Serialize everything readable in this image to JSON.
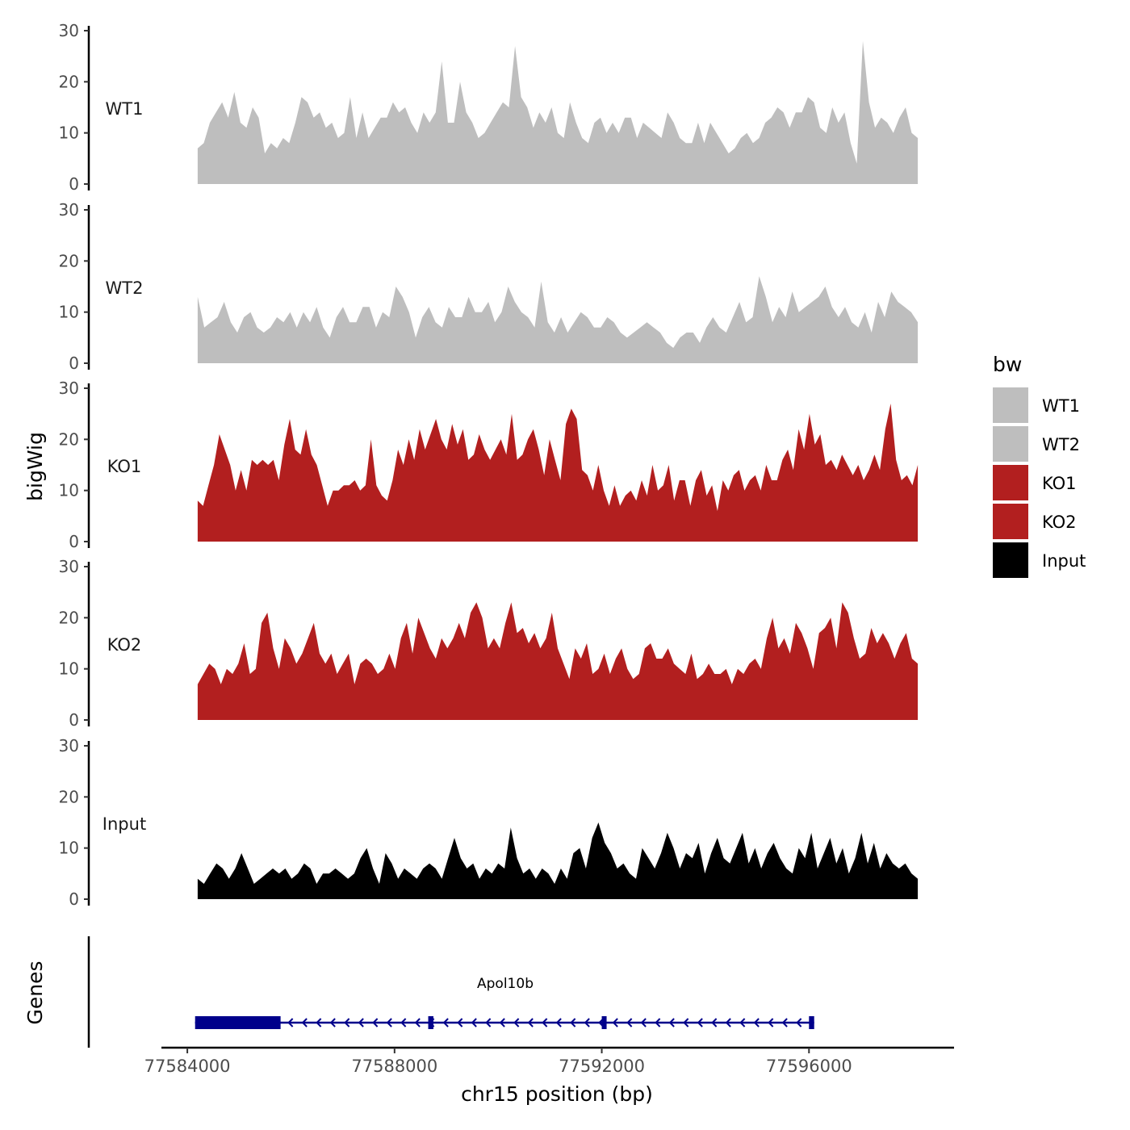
{
  "chart_data": {
    "type": "area",
    "title": "",
    "ylabel": "bigWig",
    "xlabel": "chr15 position (bp)",
    "genes_label": "Genes",
    "ylim": [
      0,
      30
    ],
    "yticks": [
      0,
      10,
      20,
      30
    ],
    "xlim": [
      77583500,
      77598800
    ],
    "xticks": [
      77584000,
      77588000,
      77592000,
      77596000
    ],
    "legend": {
      "title": "bw",
      "position": "right",
      "entries": [
        {
          "label": "WT1",
          "color": "#bebebe"
        },
        {
          "label": "WT2",
          "color": "#bebebe"
        },
        {
          "label": "KO1",
          "color": "#b21f1f"
        },
        {
          "label": "KO2",
          "color": "#b21f1f"
        },
        {
          "label": "Input",
          "color": "#000000"
        }
      ]
    },
    "x_start": 77584200,
    "x_end": 77598100,
    "series": [
      {
        "name": "WT1",
        "color": "#bebebe",
        "values": [
          7,
          8,
          12,
          14,
          16,
          13,
          18,
          12,
          11,
          15,
          13,
          6,
          8,
          7,
          9,
          8,
          12,
          17,
          16,
          13,
          14,
          11,
          12,
          9,
          10,
          17,
          9,
          14,
          9,
          11,
          13,
          13,
          16,
          14,
          15,
          12,
          10,
          14,
          12,
          14,
          24,
          12,
          12,
          20,
          14,
          12,
          9,
          10,
          12,
          14,
          16,
          15,
          27,
          17,
          15,
          11,
          14,
          12,
          15,
          10,
          9,
          16,
          12,
          9,
          8,
          12,
          13,
          10,
          12,
          10,
          13,
          13,
          9,
          12,
          11,
          10,
          9,
          14,
          12,
          9,
          8,
          8,
          12,
          8,
          12,
          10,
          8,
          6,
          7,
          9,
          10,
          8,
          9,
          12,
          13,
          15,
          14,
          11,
          14,
          14,
          17,
          16,
          11,
          10,
          15,
          12,
          14,
          8,
          4,
          28,
          16,
          11,
          13,
          12,
          10,
          13,
          15,
          10,
          9
        ]
      },
      {
        "name": "WT2",
        "color": "#bebebe",
        "values": [
          13,
          7,
          8,
          9,
          12,
          8,
          6,
          9,
          10,
          7,
          6,
          7,
          9,
          8,
          10,
          7,
          10,
          8,
          11,
          7,
          5,
          9,
          11,
          8,
          8,
          11,
          11,
          7,
          10,
          9,
          15,
          13,
          10,
          5,
          9,
          11,
          8,
          7,
          11,
          9,
          9,
          13,
          10,
          10,
          12,
          8,
          10,
          15,
          12,
          10,
          9,
          7,
          16,
          8,
          6,
          9,
          6,
          8,
          10,
          9,
          7,
          7,
          9,
          8,
          6,
          5,
          6,
          7,
          8,
          7,
          6,
          4,
          3,
          5,
          6,
          6,
          4,
          7,
          9,
          7,
          6,
          9,
          12,
          8,
          9,
          17,
          13,
          8,
          11,
          9,
          14,
          10,
          11,
          12,
          13,
          15,
          11,
          9,
          11,
          8,
          7,
          10,
          6,
          12,
          9,
          14,
          12,
          11,
          10,
          8
        ]
      },
      {
        "name": "KO1",
        "color": "#b21f1f",
        "values": [
          8,
          7,
          11,
          15,
          21,
          18,
          15,
          10,
          14,
          10,
          16,
          15,
          16,
          15,
          16,
          12,
          19,
          24,
          18,
          17,
          22,
          17,
          15,
          11,
          7,
          10,
          10,
          11,
          11,
          12,
          10,
          11,
          20,
          11,
          9,
          8,
          12,
          18,
          15,
          20,
          16,
          22,
          18,
          21,
          24,
          20,
          18,
          23,
          19,
          22,
          16,
          17,
          21,
          18,
          16,
          18,
          20,
          17,
          25,
          16,
          17,
          20,
          22,
          18,
          13,
          20,
          16,
          12,
          23,
          26,
          24,
          14,
          13,
          10,
          15,
          10,
          7,
          11,
          7,
          9,
          10,
          8,
          12,
          9,
          15,
          10,
          11,
          15,
          8,
          12,
          12,
          7,
          12,
          14,
          9,
          11,
          6,
          12,
          10,
          13,
          14,
          10,
          12,
          13,
          10,
          15,
          12,
          12,
          16,
          18,
          14,
          22,
          18,
          25,
          19,
          21,
          15,
          16,
          14,
          17,
          15,
          13,
          15,
          12,
          14,
          17,
          14,
          22,
          27,
          16,
          12,
          13,
          11,
          15
        ]
      },
      {
        "name": "KO2",
        "color": "#b21f1f",
        "values": [
          7,
          9,
          11,
          10,
          7,
          10,
          9,
          11,
          15,
          9,
          10,
          19,
          21,
          14,
          10,
          16,
          14,
          11,
          13,
          16,
          19,
          13,
          11,
          13,
          9,
          11,
          13,
          7,
          11,
          12,
          11,
          9,
          10,
          13,
          10,
          16,
          19,
          13,
          20,
          17,
          14,
          12,
          16,
          14,
          16,
          19,
          16,
          21,
          23,
          20,
          14,
          16,
          14,
          19,
          23,
          17,
          18,
          15,
          17,
          14,
          16,
          21,
          14,
          11,
          8,
          14,
          12,
          15,
          9,
          10,
          13,
          9,
          12,
          14,
          10,
          8,
          9,
          14,
          15,
          12,
          12,
          14,
          11,
          10,
          9,
          13,
          8,
          9,
          11,
          9,
          9,
          10,
          7,
          10,
          9,
          11,
          12,
          10,
          16,
          20,
          14,
          16,
          13,
          19,
          17,
          14,
          10,
          17,
          18,
          20,
          14,
          23,
          21,
          16,
          12,
          13,
          18,
          15,
          17,
          15,
          12,
          15,
          17,
          12,
          11
        ]
      },
      {
        "name": "Input",
        "color": "#000000",
        "values": [
          4,
          3,
          5,
          7,
          6,
          4,
          6,
          9,
          6,
          3,
          4,
          5,
          6,
          5,
          6,
          4,
          5,
          7,
          6,
          3,
          5,
          5,
          6,
          5,
          4,
          5,
          8,
          10,
          6,
          3,
          9,
          7,
          4,
          6,
          5,
          4,
          6,
          7,
          6,
          4,
          8,
          12,
          8,
          6,
          7,
          4,
          6,
          5,
          7,
          6,
          14,
          8,
          5,
          6,
          4,
          6,
          5,
          3,
          6,
          4,
          9,
          10,
          6,
          12,
          15,
          11,
          9,
          6,
          7,
          5,
          4,
          10,
          8,
          6,
          9,
          13,
          10,
          6,
          9,
          8,
          11,
          5,
          9,
          12,
          8,
          7,
          10,
          13,
          7,
          10,
          6,
          9,
          11,
          8,
          6,
          5,
          10,
          8,
          13,
          6,
          9,
          12,
          7,
          10,
          5,
          8,
          13,
          7,
          11,
          6,
          9,
          7,
          6,
          7,
          5,
          4
        ]
      }
    ],
    "gene": {
      "name": "Apol10b",
      "start": 77584150,
      "end": 77596100,
      "strand": "-",
      "color": "#00008b",
      "exons": [
        [
          77584150,
          77585800
        ],
        [
          77588650,
          77588750
        ],
        [
          77592000,
          77592040
        ],
        [
          77596000,
          77596100
        ]
      ]
    }
  }
}
